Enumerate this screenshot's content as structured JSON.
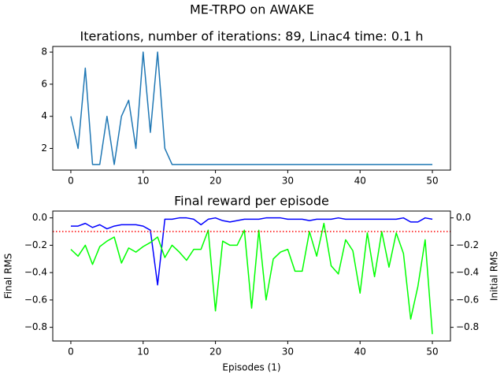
{
  "suptitle": "ME-TRPO on AWAKE",
  "chart_data": [
    {
      "type": "line",
      "title": "Iterations, number of iterations: 89, Linac4 time: 0.1 h",
      "x": [
        0,
        1,
        2,
        3,
        4,
        5,
        6,
        7,
        8,
        9,
        10,
        11,
        12,
        13,
        14,
        15,
        16,
        17,
        18,
        19,
        20,
        21,
        22,
        23,
        24,
        25,
        26,
        27,
        28,
        29,
        30,
        31,
        32,
        33,
        34,
        35,
        36,
        37,
        38,
        39,
        40,
        41,
        42,
        43,
        44,
        45,
        46,
        47,
        48,
        49,
        50
      ],
      "series": [
        {
          "color": "#1f77b4",
          "values": [
            4,
            2,
            7,
            1,
            1,
            4,
            1,
            4,
            5,
            2,
            8,
            3,
            8,
            2,
            1,
            1,
            1,
            1,
            1,
            1,
            1,
            1,
            1,
            1,
            1,
            1,
            1,
            1,
            1,
            1,
            1,
            1,
            1,
            1,
            1,
            1,
            1,
            1,
            1,
            1,
            1,
            1,
            1,
            1,
            1,
            1,
            1,
            1,
            1,
            1,
            1
          ]
        }
      ],
      "xlim": [
        -2.5,
        52.5
      ],
      "xticks": [
        0,
        10,
        20,
        30,
        40,
        50
      ],
      "ylim": [
        0.65,
        8.35
      ],
      "yticks": [
        2,
        4,
        6,
        8
      ]
    },
    {
      "type": "line",
      "title": "Final reward per episode",
      "xlabel": "Episodes (1)",
      "ylabel": "Final RMS",
      "y2label": "Initial RMS",
      "x": [
        0,
        1,
        2,
        3,
        4,
        5,
        6,
        7,
        8,
        9,
        10,
        11,
        12,
        13,
        14,
        15,
        16,
        17,
        18,
        19,
        20,
        21,
        22,
        23,
        24,
        25,
        26,
        27,
        28,
        29,
        30,
        31,
        32,
        33,
        34,
        35,
        36,
        37,
        38,
        39,
        40,
        41,
        42,
        43,
        44,
        45,
        46,
        47,
        48,
        49,
        50
      ],
      "series": [
        {
          "color": "#0000ff",
          "values": [
            -0.06,
            -0.06,
            -0.04,
            -0.07,
            -0.05,
            -0.08,
            -0.06,
            -0.05,
            -0.05,
            -0.05,
            -0.06,
            -0.09,
            -0.49,
            -0.01,
            -0.01,
            0,
            0,
            -0.01,
            -0.05,
            -0.01,
            0,
            -0.02,
            -0.03,
            -0.02,
            -0.01,
            -0.01,
            -0.01,
            0,
            0,
            0,
            -0.01,
            -0.01,
            -0.01,
            -0.02,
            -0.01,
            -0.01,
            -0.01,
            0,
            -0.01,
            -0.01,
            -0.01,
            -0.01,
            -0.01,
            -0.01,
            -0.01,
            -0.01,
            0,
            -0.03,
            -0.03,
            0,
            -0.01
          ]
        },
        {
          "color": "#00ff00",
          "axis": "y2",
          "values": [
            -0.23,
            -0.28,
            -0.2,
            -0.34,
            -0.21,
            -0.17,
            -0.14,
            -0.33,
            -0.22,
            -0.25,
            -0.21,
            -0.18,
            -0.14,
            -0.29,
            -0.2,
            -0.25,
            -0.31,
            -0.23,
            -0.23,
            -0.09,
            -0.68,
            -0.17,
            -0.2,
            -0.2,
            -0.09,
            -0.66,
            -0.09,
            -0.6,
            -0.3,
            -0.25,
            -0.23,
            -0.39,
            -0.39,
            -0.1,
            -0.28,
            -0.04,
            -0.35,
            -0.41,
            -0.16,
            -0.24,
            -0.55,
            -0.11,
            -0.43,
            -0.1,
            -0.36,
            -0.11,
            -0.26,
            -0.74,
            -0.5,
            -0.16,
            -0.85
          ]
        }
      ],
      "hline": {
        "value": -0.1,
        "color": "#ff0000"
      },
      "xlim": [
        -2.5,
        52.5
      ],
      "xticks": [
        0,
        10,
        20,
        30,
        40,
        50
      ],
      "ylim": [
        -0.9,
        0.05
      ],
      "yticks": [
        {
          "value": 0,
          "label": "0.0"
        },
        {
          "value": -0.2,
          "label": "−0.2"
        },
        {
          "value": -0.4,
          "label": "−0.4"
        },
        {
          "value": -0.6,
          "label": "−0.6"
        },
        {
          "value": -0.8,
          "label": "−0.8"
        }
      ],
      "y2lim": [
        -0.9,
        0.05
      ],
      "y2ticks": [
        {
          "value": 0,
          "label": "0.0"
        },
        {
          "value": -0.2,
          "label": "−0.2"
        },
        {
          "value": -0.4,
          "label": "−0.4"
        },
        {
          "value": -0.6,
          "label": "−0.6"
        },
        {
          "value": -0.8,
          "label": "−0.8"
        }
      ]
    }
  ]
}
